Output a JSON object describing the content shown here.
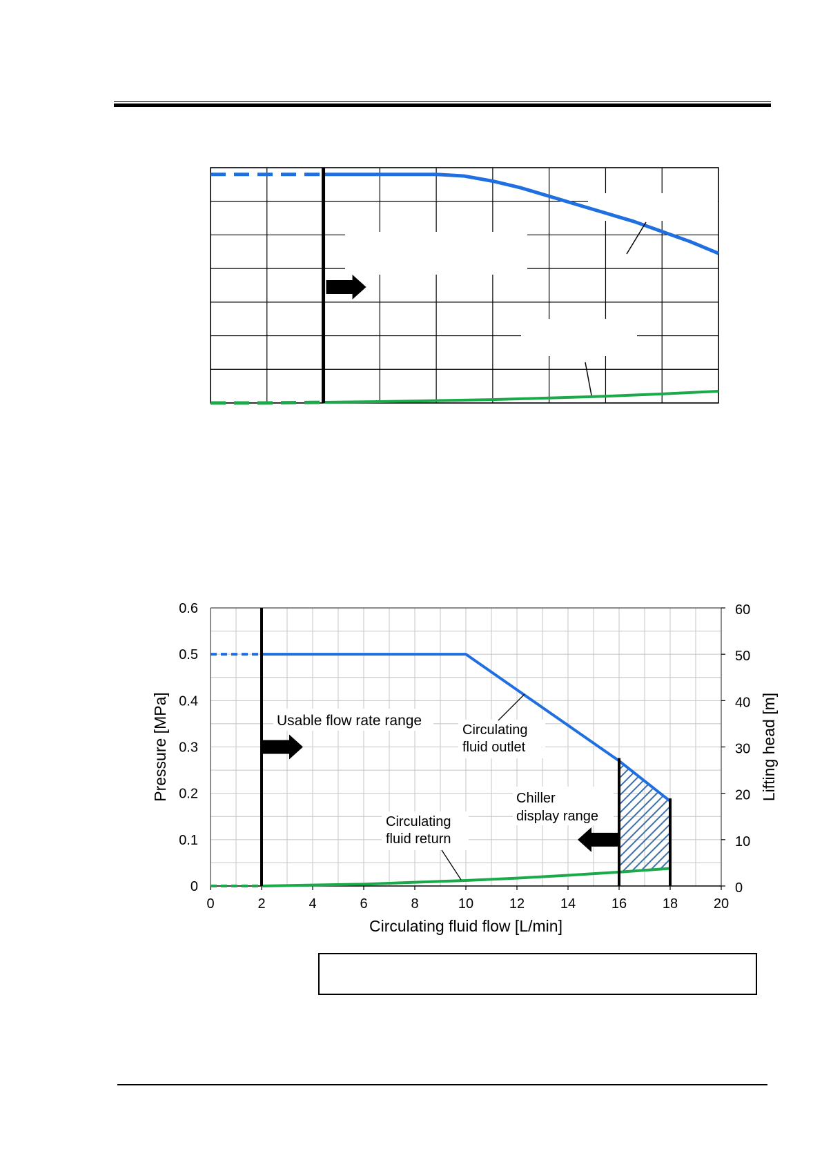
{
  "chart_data": [
    {
      "type": "line",
      "title": "",
      "xlabel": "",
      "ylabel": "",
      "xlim": [
        0,
        18
      ],
      "ylim": [
        0,
        0.7
      ],
      "grid": true,
      "series": [
        {
          "name": "",
          "color": "#1f6fe0",
          "x": [
            0,
            2,
            4,
            6,
            8,
            9,
            10,
            11,
            12,
            13,
            14,
            15,
            16,
            17,
            18
          ],
          "y": [
            0.68,
            0.68,
            0.68,
            0.68,
            0.68,
            0.675,
            0.66,
            0.64,
            0.615,
            0.59,
            0.565,
            0.54,
            0.51,
            0.48,
            0.445
          ]
        },
        {
          "name": "",
          "color": "#1aaa4a",
          "x": [
            0,
            2,
            4,
            6,
            8,
            10,
            12,
            14,
            16,
            18
          ],
          "y": [
            0.0,
            0.0,
            0.002,
            0.004,
            0.007,
            0.01,
            0.015,
            0.02,
            0.027,
            0.035
          ]
        }
      ],
      "usable_min_x": 4
    },
    {
      "type": "line",
      "title": "",
      "xlabel": "Circulating fluid flow [L/min]",
      "ylabel": "Pressure [MPa]",
      "y2label": "Lifting head [m]",
      "xlim": [
        0,
        20
      ],
      "ylim": [
        0,
        0.6
      ],
      "y2lim": [
        0,
        60
      ],
      "grid": true,
      "x_ticks": [
        "0",
        "2",
        "4",
        "6",
        "8",
        "10",
        "12",
        "14",
        "16",
        "18",
        "20"
      ],
      "y_ticks": [
        "0",
        "0.1",
        "0.2",
        "0.3",
        "0.4",
        "0.5",
        "0.6"
      ],
      "y2_ticks": [
        "0",
        "10",
        "20",
        "30",
        "40",
        "50",
        "60"
      ],
      "series": [
        {
          "name": "Circulating fluid outlet",
          "color": "#1f6fe0",
          "x": [
            0,
            2,
            10,
            16,
            18
          ],
          "y": [
            0.5,
            0.5,
            0.5,
            0.27,
            0.183
          ]
        },
        {
          "name": "Circulating fluid return",
          "color": "#1aaa4a",
          "x": [
            0,
            2,
            4,
            6,
            8,
            10,
            12,
            14,
            16,
            18
          ],
          "y": [
            0.0,
            0.0,
            0.002,
            0.004,
            0.008,
            0.012,
            0.017,
            0.023,
            0.03,
            0.038
          ]
        }
      ],
      "usable_min_x": 2,
      "display_range_x": [
        16,
        18
      ],
      "annotations": {
        "usable": "Usable flow rate range",
        "outlet_1": "Circulating",
        "outlet_2": "fluid outlet",
        "return_1": "Circulating",
        "return_2": "fluid return",
        "chiller_1": "Chiller",
        "chiller_2": "display range"
      }
    }
  ]
}
